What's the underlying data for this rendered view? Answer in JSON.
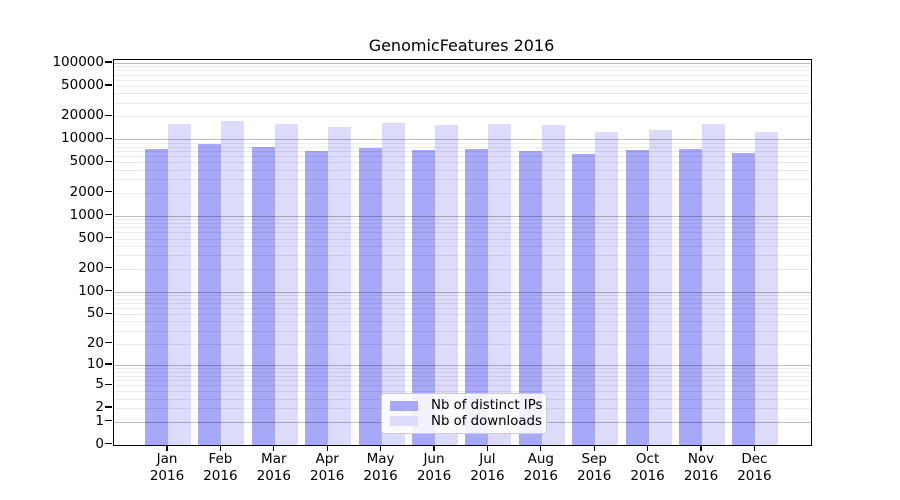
{
  "figure": {
    "title": "GenomicFeatures 2016"
  },
  "chart_data": {
    "type": "bar",
    "title": "GenomicFeatures 2016",
    "categories": [
      "Jan",
      "Feb",
      "Mar",
      "Apr",
      "May",
      "Jun",
      "Jul",
      "Aug",
      "Sep",
      "Oct",
      "Nov",
      "Dec"
    ],
    "xtick_year": "2016",
    "series": [
      {
        "name": "Nb of distinct IPs",
        "color": "#a8a8f8",
        "values": [
          7500,
          8600,
          8000,
          7000,
          7800,
          7300,
          7500,
          7000,
          6400,
          7200,
          7400,
          6700
        ]
      },
      {
        "name": "Nb of downloads",
        "color": "#dcdcfa",
        "values": [
          16000,
          17200,
          16000,
          14400,
          16500,
          15500,
          16000,
          15200,
          12500,
          13400,
          16000,
          12600
        ]
      }
    ],
    "yscale": "log1p",
    "ylim": [
      0,
      100000
    ],
    "ytick_values": [
      0,
      1,
      2,
      5,
      10,
      20,
      50,
      100,
      200,
      500,
      1000,
      2000,
      5000,
      10000,
      20000,
      50000,
      100000
    ],
    "grid": true,
    "grid_minor_per_decade": [
      2,
      3,
      4,
      5,
      6,
      7,
      8,
      9
    ],
    "legend_position": "lower center"
  }
}
